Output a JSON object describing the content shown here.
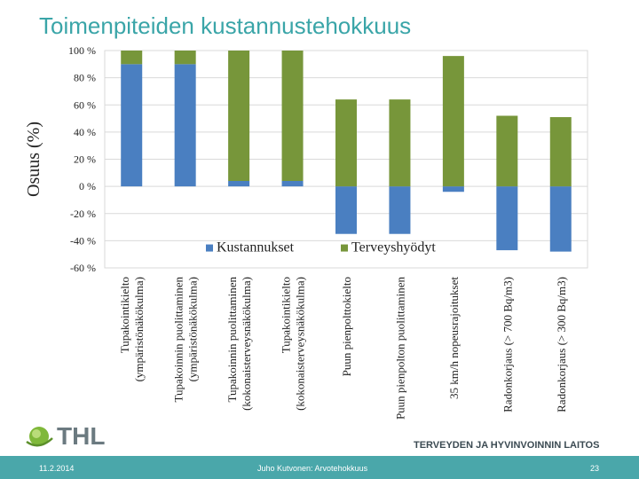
{
  "slide": {
    "title": "Toimenpiteiden kustannustehokkuus",
    "logo_text": "THL",
    "org_name": "TERVEYDEN JA HYVINVOINNIN LAITOS",
    "footer": {
      "date": "11.2.2014",
      "author": "Juho Kutvonen: Arvotehokkuus",
      "page": "23"
    }
  },
  "colors": {
    "title": "#3aa5a8",
    "costs": "#4a7fc1",
    "benefits": "#77963a",
    "footer": "#4aa7aa"
  },
  "chart_data": {
    "type": "bar",
    "stacked": true,
    "ylabel": "Osuus (%)",
    "ylim": [
      -60,
      100
    ],
    "yticks": [
      "100 %",
      "80 %",
      "60 %",
      "40 %",
      "20 %",
      "0 %",
      "-20 %",
      "-40 %",
      "-60 %"
    ],
    "ytick_values": [
      100,
      80,
      60,
      40,
      20,
      0,
      -20,
      -40,
      -60
    ],
    "legend_position": "inside-bottom",
    "grid": true,
    "categories": [
      [
        "Tupakointikielto",
        "(ympäristönäkökulma)"
      ],
      [
        "Tupakoinnin puolittaminen",
        "(ympäristönäkökulma)"
      ],
      [
        "Tupakoinnin puolittaminen",
        "(kokonaisterveysnäkökulma)"
      ],
      [
        "Tupakointikielto",
        "(kokonaisterveysnäkökulma)"
      ],
      [
        "Puun pienpolttokielto"
      ],
      [
        "Puun pienpolton puolittaminen"
      ],
      [
        "35 km/h nopeusrajoitukset"
      ],
      [
        "Radonkorjaus (> 700 Bq/m3)"
      ],
      [
        "Radonkorjaus (> 300 Bq/m3)"
      ]
    ],
    "series": [
      {
        "name": "Kustannukset",
        "values": [
          90,
          90,
          4,
          4,
          -35,
          -35,
          -4,
          -47,
          -48
        ]
      },
      {
        "name": "Terveyshyödyt",
        "values": [
          10,
          10,
          96,
          96,
          64,
          64,
          96,
          52,
          51
        ]
      }
    ]
  }
}
